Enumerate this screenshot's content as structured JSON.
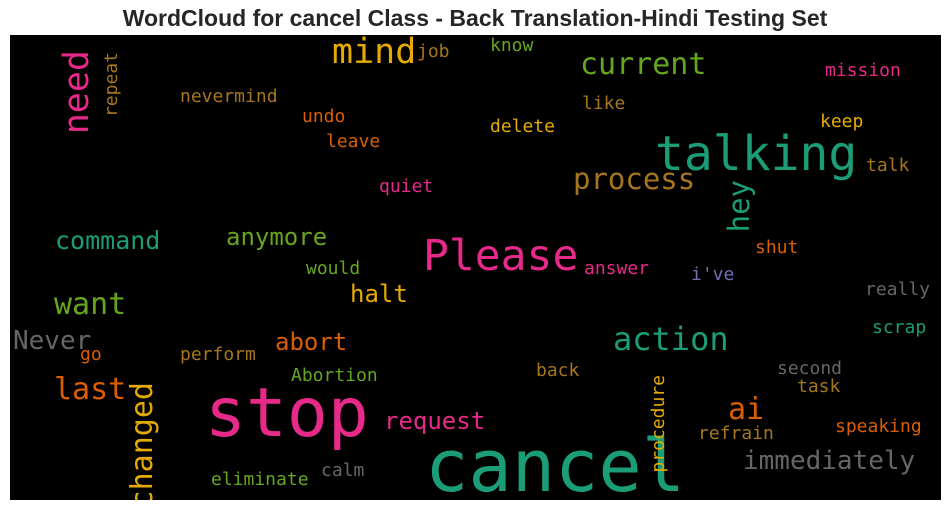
{
  "title": "WordCloud for cancel Class - Back Translation-Hindi Testing Set",
  "chart_data": {
    "type": "wordcloud",
    "title": "WordCloud for cancel Class - Back Translation-Hindi Testing Set",
    "background": "#000000",
    "words": [
      {
        "text": "cancel",
        "weight": 1.0,
        "color": "#1b9e77"
      },
      {
        "text": "stop",
        "weight": 0.95,
        "color": "#e7298a"
      },
      {
        "text": "talking",
        "weight": 0.65,
        "color": "#1b9e77"
      },
      {
        "text": "Please",
        "weight": 0.58,
        "color": "#e7298a"
      },
      {
        "text": "mind",
        "weight": 0.48,
        "color": "#e6ab02"
      },
      {
        "text": "need",
        "weight": 0.48,
        "color": "#e7298a"
      },
      {
        "text": "action",
        "weight": 0.45,
        "color": "#1b9e77"
      },
      {
        "text": "current",
        "weight": 0.42,
        "color": "#66a61e"
      },
      {
        "text": "want",
        "weight": 0.42,
        "color": "#66a61e"
      },
      {
        "text": "last",
        "weight": 0.42,
        "color": "#d95f02"
      },
      {
        "text": "changed",
        "weight": 0.4,
        "color": "#e6ab02"
      },
      {
        "text": "ai",
        "weight": 0.42,
        "color": "#d95f02"
      },
      {
        "text": "process",
        "weight": 0.4,
        "color": "#a6761d"
      },
      {
        "text": "hey",
        "weight": 0.4,
        "color": "#1b9e77"
      },
      {
        "text": "immediately",
        "weight": 0.36,
        "color": "#666666"
      },
      {
        "text": "Never",
        "weight": 0.36,
        "color": "#666666"
      },
      {
        "text": "command",
        "weight": 0.35,
        "color": "#1b9e77"
      },
      {
        "text": "anymore",
        "weight": 0.34,
        "color": "#66a61e"
      },
      {
        "text": "halt",
        "weight": 0.34,
        "color": "#e6ab02"
      },
      {
        "text": "abort",
        "weight": 0.34,
        "color": "#d95f02"
      },
      {
        "text": "request",
        "weight": 0.34,
        "color": "#e7298a"
      },
      {
        "text": "mission",
        "weight": 0.25,
        "color": "#e7298a"
      },
      {
        "text": "job",
        "weight": 0.25,
        "color": "#a6761d"
      },
      {
        "text": "know",
        "weight": 0.23,
        "color": "#66a61e"
      },
      {
        "text": "repeat",
        "weight": 0.23,
        "color": "#a6761d"
      },
      {
        "text": "nevermind",
        "weight": 0.23,
        "color": "#a6761d"
      },
      {
        "text": "like",
        "weight": 0.23,
        "color": "#a6761d"
      },
      {
        "text": "undo",
        "weight": 0.23,
        "color": "#d95f02"
      },
      {
        "text": "delete",
        "weight": 0.23,
        "color": "#e6ab02"
      },
      {
        "text": "keep",
        "weight": 0.23,
        "color": "#e6ab02"
      },
      {
        "text": "leave",
        "weight": 0.23,
        "color": "#d95f02"
      },
      {
        "text": "talk",
        "weight": 0.23,
        "color": "#a6761d"
      },
      {
        "text": "quiet",
        "weight": 0.23,
        "color": "#e7298a"
      },
      {
        "text": "shut",
        "weight": 0.23,
        "color": "#d95f02"
      },
      {
        "text": "answer",
        "weight": 0.23,
        "color": "#e7298a"
      },
      {
        "text": "i've",
        "weight": 0.23,
        "color": "#7570b3"
      },
      {
        "text": "would",
        "weight": 0.23,
        "color": "#66a61e"
      },
      {
        "text": "really",
        "weight": 0.23,
        "color": "#666666"
      },
      {
        "text": "scrap",
        "weight": 0.23,
        "color": "#1b9e77"
      },
      {
        "text": "go",
        "weight": 0.23,
        "color": "#d95f02"
      },
      {
        "text": "perform",
        "weight": 0.23,
        "color": "#a6761d"
      },
      {
        "text": "Abortion",
        "weight": 0.23,
        "color": "#66a61e"
      },
      {
        "text": "back",
        "weight": 0.23,
        "color": "#a6761d"
      },
      {
        "text": "procedure",
        "weight": 0.23,
        "color": "#e6ab02"
      },
      {
        "text": "second",
        "weight": 0.23,
        "color": "#666666"
      },
      {
        "text": "task",
        "weight": 0.23,
        "color": "#a6761d"
      },
      {
        "text": "refrain",
        "weight": 0.23,
        "color": "#a6761d"
      },
      {
        "text": "speaking",
        "weight": 0.23,
        "color": "#d95f02"
      },
      {
        "text": "calm",
        "weight": 0.23,
        "color": "#666666"
      },
      {
        "text": "eliminate",
        "weight": 0.23,
        "color": "#66a61e"
      }
    ]
  }
}
